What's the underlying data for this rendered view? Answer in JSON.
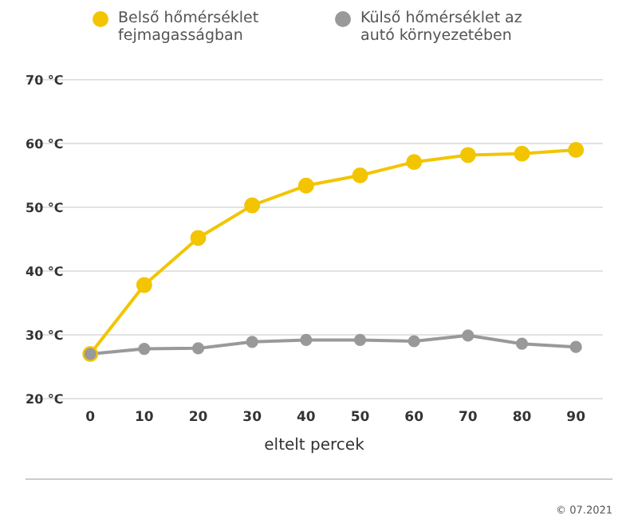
{
  "chart_data": {
    "type": "line",
    "xlabel": "eltelt percek",
    "x": [
      0,
      10,
      20,
      30,
      40,
      50,
      60,
      70,
      80,
      90
    ],
    "series": [
      {
        "name": "Belső hőmérséklet fejmagasságban",
        "color": "#f2c500",
        "values": [
          27.0,
          37.8,
          45.2,
          50.3,
          53.4,
          55.0,
          57.1,
          58.2,
          58.4,
          59.0
        ]
      },
      {
        "name": "Külső hőmérséklet az autó környezetében",
        "color": "#999999",
        "values": [
          27.0,
          27.8,
          27.9,
          28.9,
          29.2,
          29.2,
          29.0,
          29.9,
          28.6,
          28.1
        ]
      }
    ],
    "xlim": [
      -12,
      95
    ],
    "xticks": [
      0,
      10,
      20,
      30,
      40,
      50,
      60,
      70,
      80,
      90
    ],
    "ylim": [
      20,
      70
    ],
    "yticks": [
      {
        "value": 20,
        "label": "20 °C"
      },
      {
        "value": 30,
        "label": "30 °C"
      },
      {
        "value": 40,
        "label": "40 °C"
      },
      {
        "value": 50,
        "label": "50 °C"
      },
      {
        "value": 60,
        "label": "60 °C"
      },
      {
        "value": 70,
        "label": "70 °C"
      }
    ],
    "grid": "y",
    "legend": "top",
    "marker": "circle",
    "line_style": "solid",
    "annotations": [
      "© 07.2021"
    ]
  }
}
